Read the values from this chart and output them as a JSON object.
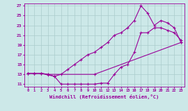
{
  "xlabel": "Windchill (Refroidissement éolien,°C)",
  "bg_color": "#cce8e8",
  "grid_color": "#aacccc",
  "line_color": "#990099",
  "marker": "+",
  "xlim": [
    -0.5,
    23.5
  ],
  "ylim": [
    10.5,
    27.5
  ],
  "xticks": [
    0,
    1,
    2,
    3,
    4,
    5,
    6,
    7,
    8,
    9,
    10,
    11,
    12,
    13,
    14,
    15,
    16,
    17,
    18,
    19,
    20,
    21,
    22,
    23
  ],
  "yticks": [
    11,
    13,
    15,
    17,
    19,
    21,
    23,
    25,
    27
  ],
  "line1_x": [
    0,
    1,
    2,
    3,
    10,
    23
  ],
  "line1_y": [
    13.2,
    13.2,
    13.2,
    13.0,
    13.0,
    19.5
  ],
  "line2_x": [
    0,
    1,
    2,
    3,
    4,
    5,
    6,
    7,
    8,
    9,
    10,
    11,
    12,
    13,
    14,
    15,
    16,
    17,
    18,
    19,
    20,
    21,
    22,
    23
  ],
  "line2_y": [
    13.2,
    13.2,
    13.2,
    12.9,
    12.6,
    11.0,
    11.0,
    11.0,
    11.0,
    11.0,
    11.0,
    11.2,
    11.2,
    13.0,
    14.5,
    15.0,
    17.5,
    21.5,
    21.5,
    22.5,
    22.5,
    22.0,
    21.5,
    20.0
  ],
  "line3_x": [
    0,
    1,
    2,
    3,
    4,
    5,
    6,
    7,
    8,
    9,
    10,
    11,
    12,
    13,
    14,
    15,
    16,
    17,
    18,
    19,
    20,
    21,
    22,
    23
  ],
  "line3_y": [
    13.2,
    13.2,
    13.2,
    13.0,
    12.6,
    13.0,
    14.0,
    15.0,
    16.0,
    17.0,
    17.5,
    18.5,
    19.5,
    21.0,
    21.5,
    22.5,
    24.0,
    27.0,
    25.5,
    23.0,
    24.0,
    23.5,
    22.5,
    19.5
  ]
}
